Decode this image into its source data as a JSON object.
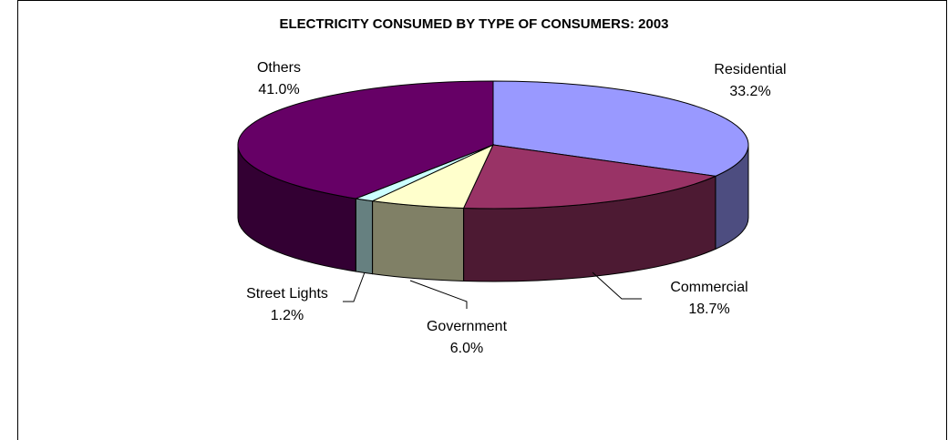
{
  "chart_data": {
    "type": "pie",
    "title": "ELECTRICITY CONSUMED BY TYPE OF CONSUMERS: 2003",
    "slices": [
      {
        "name": "Residential",
        "value": 33.2,
        "label": "33.2%",
        "color": "#9999ff",
        "side_color": "#4d4d80"
      },
      {
        "name": "Commercial",
        "value": 18.7,
        "label": "18.7%",
        "color": "#993366",
        "side_color": "#4d1a33"
      },
      {
        "name": "Government",
        "value": 6.0,
        "label": "6.0%",
        "color": "#ffffcc",
        "side_color": "#808066"
      },
      {
        "name": "Street Lights",
        "value": 1.2,
        "label": "1.2%",
        "color": "#ccffff",
        "side_color": "#668080"
      },
      {
        "name": "Others",
        "value": 41.0,
        "label": "41.0%",
        "color": "#660066",
        "side_color": "#330033"
      }
    ]
  }
}
